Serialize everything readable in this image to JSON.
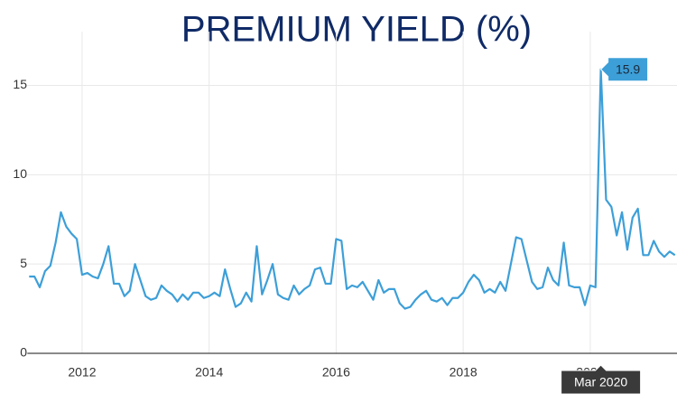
{
  "chart_data": {
    "type": "line",
    "title": "PREMIUM YIELD (%)",
    "x": [
      "2011-03",
      "2011-04",
      "2011-05",
      "2011-06",
      "2011-07",
      "2011-08",
      "2011-09",
      "2011-10",
      "2011-11",
      "2011-12",
      "2012-01",
      "2012-02",
      "2012-03",
      "2012-04",
      "2012-05",
      "2012-06",
      "2012-07",
      "2012-08",
      "2012-09",
      "2012-10",
      "2012-11",
      "2012-12",
      "2013-01",
      "2013-02",
      "2013-03",
      "2013-04",
      "2013-05",
      "2013-06",
      "2013-07",
      "2013-08",
      "2013-09",
      "2013-10",
      "2013-11",
      "2013-12",
      "2014-01",
      "2014-02",
      "2014-03",
      "2014-04",
      "2014-05",
      "2014-06",
      "2014-07",
      "2014-08",
      "2014-09",
      "2014-10",
      "2014-11",
      "2014-12",
      "2015-01",
      "2015-02",
      "2015-03",
      "2015-04",
      "2015-05",
      "2015-06",
      "2015-07",
      "2015-08",
      "2015-09",
      "2015-10",
      "2015-11",
      "2015-12",
      "2016-01",
      "2016-02",
      "2016-03",
      "2016-04",
      "2016-05",
      "2016-06",
      "2016-07",
      "2016-08",
      "2016-09",
      "2016-10",
      "2016-11",
      "2016-12",
      "2017-01",
      "2017-02",
      "2017-03",
      "2017-04",
      "2017-05",
      "2017-06",
      "2017-07",
      "2017-08",
      "2017-09",
      "2017-10",
      "2017-11",
      "2017-12",
      "2018-01",
      "2018-02",
      "2018-03",
      "2018-04",
      "2018-05",
      "2018-06",
      "2018-07",
      "2018-08",
      "2018-09",
      "2018-10",
      "2018-11",
      "2018-12",
      "2019-01",
      "2019-02",
      "2019-03",
      "2019-04",
      "2019-05",
      "2019-06",
      "2019-07",
      "2019-08",
      "2019-09",
      "2019-10",
      "2019-11",
      "2019-12",
      "2020-01",
      "2020-02",
      "2020-03",
      "2020-04",
      "2020-05",
      "2020-06",
      "2020-07",
      "2020-08",
      "2020-09",
      "2020-10",
      "2020-11",
      "2020-12",
      "2021-01",
      "2021-02",
      "2021-03",
      "2021-04",
      "2021-05"
    ],
    "series": [
      {
        "color": "#3d9fd8",
        "values": [
          4.3,
          4.3,
          3.7,
          4.6,
          4.9,
          6.2,
          7.9,
          7.1,
          6.7,
          6.4,
          4.4,
          4.5,
          4.3,
          4.2,
          5.0,
          6.0,
          3.9,
          3.9,
          3.2,
          3.5,
          5.0,
          4.1,
          3.2,
          3.0,
          3.1,
          3.8,
          3.5,
          3.3,
          2.9,
          3.3,
          3.0,
          3.4,
          3.4,
          3.1,
          3.2,
          3.4,
          3.2,
          4.7,
          3.6,
          2.6,
          2.8,
          3.4,
          2.9,
          6.0,
          3.3,
          4.1,
          5.0,
          3.3,
          3.1,
          3.0,
          3.8,
          3.3,
          3.6,
          3.8,
          4.7,
          4.8,
          3.9,
          3.9,
          6.4,
          6.3,
          3.6,
          3.8,
          3.7,
          4.0,
          3.5,
          3.0,
          4.1,
          3.4,
          3.6,
          3.6,
          2.8,
          2.5,
          2.6,
          3.0,
          3.3,
          3.5,
          3.0,
          2.9,
          3.1,
          2.7,
          3.1,
          3.1,
          3.4,
          4.0,
          4.4,
          4.1,
          3.4,
          3.6,
          3.4,
          4.0,
          3.5,
          5.0,
          6.5,
          6.4,
          5.2,
          4.0,
          3.6,
          3.7,
          4.8,
          4.1,
          3.8,
          6.2,
          3.8,
          3.7,
          3.7,
          2.7,
          3.8,
          3.7,
          15.9,
          8.6,
          8.2,
          6.6,
          7.9,
          5.8,
          7.6,
          8.1,
          5.5,
          5.5,
          6.3,
          5.7,
          5.4,
          5.7,
          5.5
        ]
      }
    ],
    "xlim": [
      "2011-03",
      "2021-05"
    ],
    "xticks": [
      2012,
      2014,
      2016,
      2018,
      2020
    ],
    "ylim": [
      0,
      17
    ],
    "yticks": [
      0,
      5,
      10,
      15
    ],
    "grid": true,
    "hover": {
      "x": "2020-03",
      "x_label": "Mar 2020"
    }
  }
}
